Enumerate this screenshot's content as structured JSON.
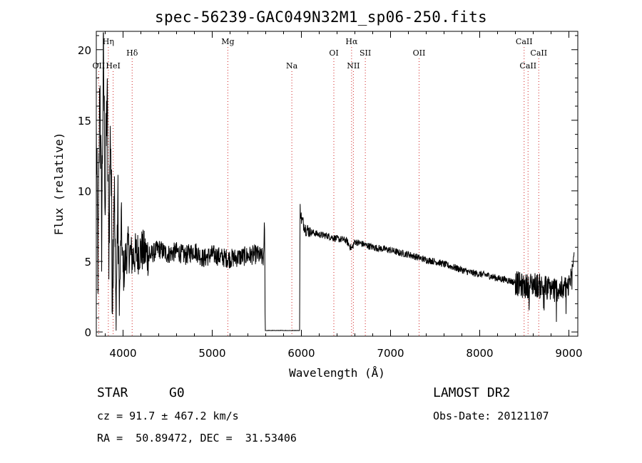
{
  "title": "spec-56239-GAC049N32M1_sp06-250.fits",
  "info": {
    "class_label": "STAR",
    "subclass_label": "G0",
    "survey": "LAMOST DR2",
    "cz": "cz = 91.7 ± 467.2 km/s",
    "obs_date": "Obs-Date: 20121107",
    "coords": "RA =  50.89472, DEC =  31.53406"
  },
  "chart_data": {
    "type": "line",
    "title": "spec-56239-GAC049N32M1_sp06-250.fits",
    "xlabel": "Wavelength (Å)",
    "ylabel": "Flux (relative)",
    "xlim": [
      3700,
      9100
    ],
    "ylim": [
      -0.3,
      21.3
    ],
    "xticks": [
      4000,
      5000,
      6000,
      7000,
      8000,
      9000
    ],
    "yticks": [
      0,
      5,
      10,
      15,
      20
    ],
    "colors": {
      "spectrum": "#000000",
      "line_marker": "#d02020"
    },
    "series": [
      {
        "name": "flux",
        "knots": [
          [
            3700,
            14
          ],
          [
            3720,
            4
          ],
          [
            3740,
            18
          ],
          [
            3760,
            7
          ],
          [
            3780,
            20
          ],
          [
            3800,
            9
          ],
          [
            3820,
            17
          ],
          [
            3840,
            6
          ],
          [
            3860,
            15
          ],
          [
            3880,
            3
          ],
          [
            3900,
            11
          ],
          [
            3920,
            0.5
          ],
          [
            3940,
            9
          ],
          [
            3960,
            2
          ],
          [
            3980,
            8
          ],
          [
            4000,
            4
          ],
          [
            4050,
            6
          ],
          [
            4100,
            5.3
          ],
          [
            4200,
            5.8
          ],
          [
            4300,
            5.4
          ],
          [
            4400,
            5.9
          ],
          [
            4500,
            5.5
          ],
          [
            4600,
            5.7
          ],
          [
            4700,
            5.4
          ],
          [
            4800,
            5.8
          ],
          [
            4900,
            5.2
          ],
          [
            5000,
            5.5
          ],
          [
            5100,
            5.3
          ],
          [
            5200,
            5.2
          ],
          [
            5300,
            5.3
          ],
          [
            5400,
            5.4
          ],
          [
            5500,
            5.5
          ],
          [
            5580,
            5.2
          ],
          [
            5585,
            8.7
          ],
          [
            5595,
            0.1
          ],
          [
            5980,
            0.1
          ],
          [
            5985,
            8.9
          ],
          [
            6000,
            8.0
          ],
          [
            6050,
            7.3
          ],
          [
            6100,
            7.1
          ],
          [
            6200,
            6.9
          ],
          [
            6300,
            6.8
          ],
          [
            6400,
            6.6
          ],
          [
            6500,
            6.5
          ],
          [
            6563,
            5.9
          ],
          [
            6600,
            6.4
          ],
          [
            6700,
            6.2
          ],
          [
            6800,
            6.0
          ],
          [
            6900,
            5.9
          ],
          [
            7000,
            5.8
          ],
          [
            7100,
            5.6
          ],
          [
            7200,
            5.5
          ],
          [
            7300,
            5.3
          ],
          [
            7400,
            5.1
          ],
          [
            7500,
            5.0
          ],
          [
            7600,
            4.8
          ],
          [
            7700,
            4.6
          ],
          [
            7800,
            4.4
          ],
          [
            7900,
            4.2
          ],
          [
            8000,
            4.1
          ],
          [
            8100,
            4.0
          ],
          [
            8200,
            3.8
          ],
          [
            8300,
            3.7
          ],
          [
            8400,
            3.5
          ],
          [
            8500,
            3.2
          ],
          [
            8600,
            3.4
          ],
          [
            8700,
            3.2
          ],
          [
            8800,
            3.1
          ],
          [
            8900,
            3.0
          ],
          [
            9000,
            3.3
          ],
          [
            9030,
            4.0
          ],
          [
            9060,
            6.5
          ]
        ]
      }
    ],
    "line_markers": [
      {
        "label": "OII",
        "wavelength": 3727,
        "row": 3
      },
      {
        "label": "Hη",
        "wavelength": 3835,
        "row": 1
      },
      {
        "label": "HeI",
        "wavelength": 3889,
        "row": 3
      },
      {
        "label": "Hδ",
        "wavelength": 4102,
        "row": 2
      },
      {
        "label": "Mg",
        "wavelength": 5175,
        "row": 1
      },
      {
        "label": "Na",
        "wavelength": 5893,
        "row": 3
      },
      {
        "label": "OI",
        "wavelength": 6364,
        "row": 2
      },
      {
        "label": "Hα",
        "wavelength": 6563,
        "row": 1
      },
      {
        "label": "NII",
        "wavelength": 6583,
        "row": 3
      },
      {
        "label": "SII",
        "wavelength": 6717,
        "row": 2
      },
      {
        "label": "OII",
        "wavelength": 7320,
        "row": 2
      },
      {
        "label": "CaII",
        "wavelength": 8498,
        "row": 1
      },
      {
        "label": "CaII",
        "wavelength": 8542,
        "row": 3
      },
      {
        "label": "CaII",
        "wavelength": 8662,
        "row": 2
      }
    ]
  }
}
